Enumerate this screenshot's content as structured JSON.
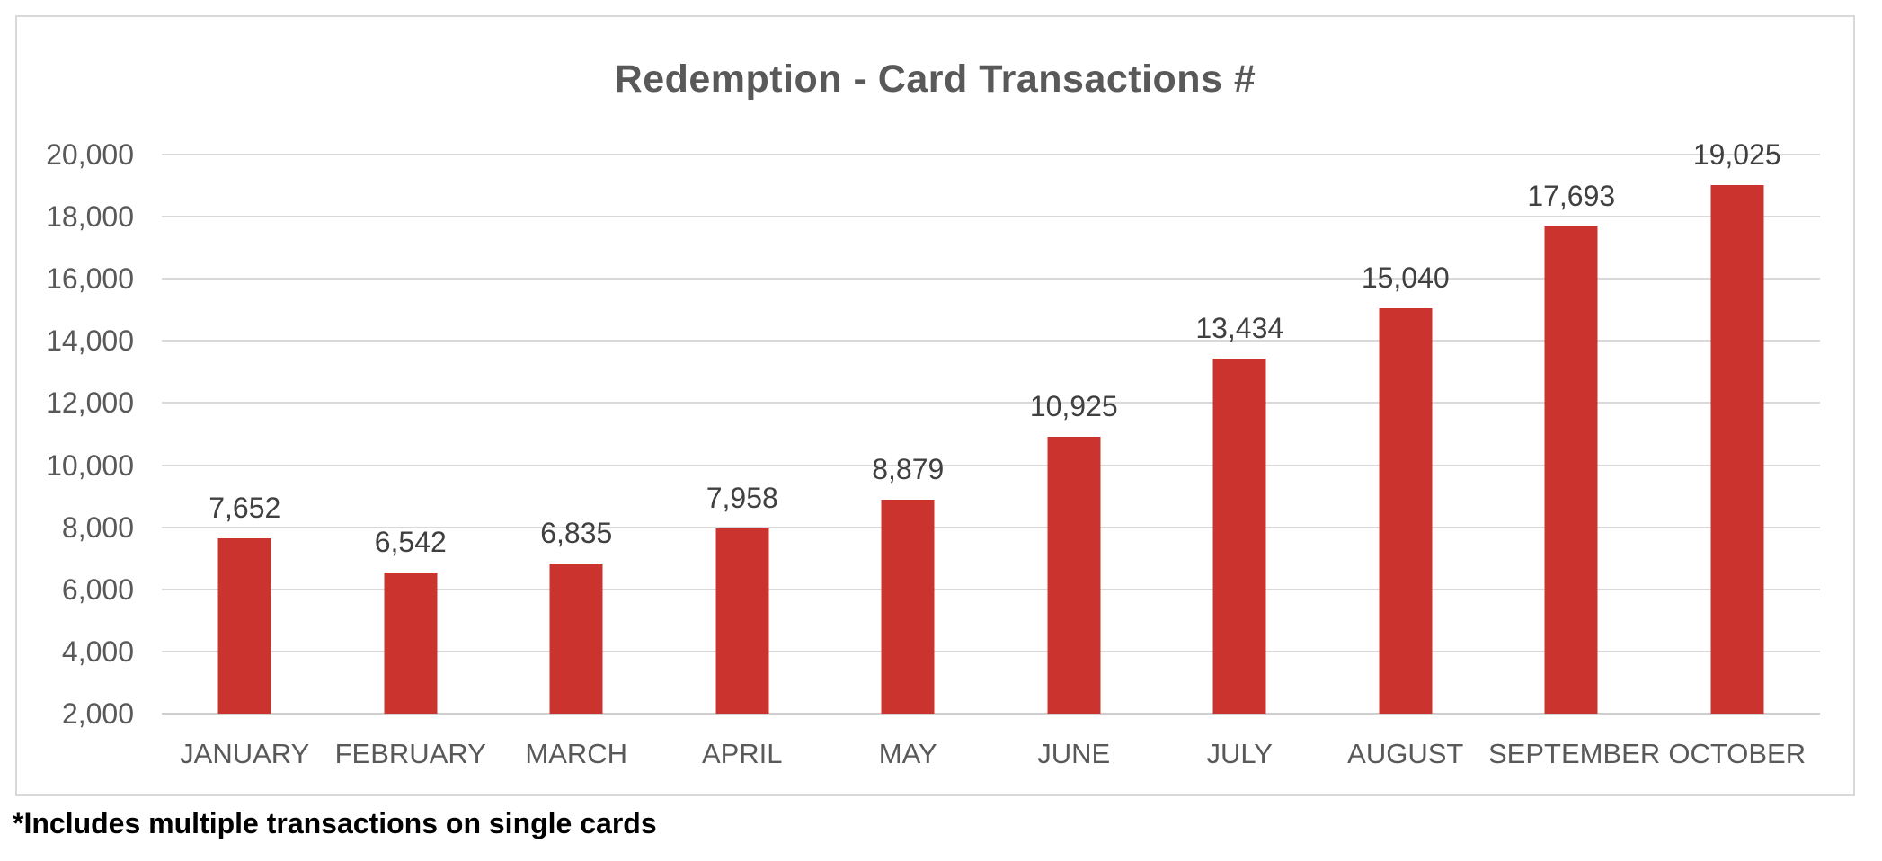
{
  "chart_data": {
    "type": "bar",
    "title": "Redemption - Card Transactions #",
    "footnote": "*Includes multiple transactions on single cards",
    "categories": [
      "JANUARY",
      "FEBRUARY",
      "MARCH",
      "APRIL",
      "MAY",
      "JUNE",
      "JULY",
      "AUGUST",
      "SEPTEMBER",
      "OCTOBER"
    ],
    "values": [
      7652,
      6542,
      6835,
      7958,
      8879,
      10925,
      13434,
      15040,
      17693,
      19025
    ],
    "value_labels": [
      "7,652",
      "6,542",
      "6,835",
      "7,958",
      "8,879",
      "10,925",
      "13,434",
      "15,040",
      "17,693",
      "19,025"
    ],
    "xlabel": "",
    "ylabel": "",
    "ylim": [
      2000,
      20000
    ],
    "ytick_step": 2000,
    "ytick_labels": [
      "20,000",
      "18,000",
      "16,000",
      "14,000",
      "12,000",
      "10,000",
      "8,000",
      "6,000",
      "4,000",
      "2,000"
    ],
    "grid": "on",
    "legend": "none",
    "colors": {
      "bar": "#CB342E",
      "gridline": "#D9D9D9",
      "axis_line": "#CFCFCF",
      "axis_text": "#595959",
      "data_label": "#404040",
      "title_text": "#595959",
      "chart_border": "#D9D9D9",
      "footnote_text": "#000000",
      "background": "#FFFFFF"
    }
  }
}
